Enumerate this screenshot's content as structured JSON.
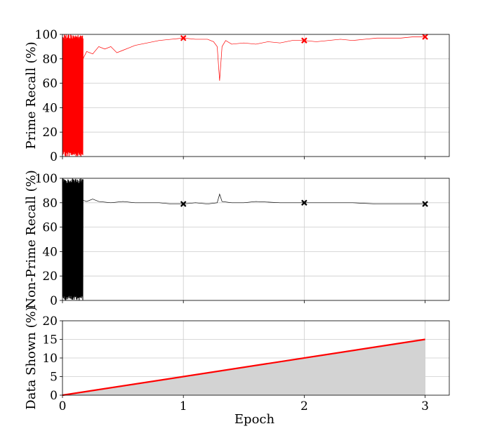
{
  "chart_data": [
    {
      "type": "line",
      "ylabel": "Prime Recall (%)",
      "xlabel": "",
      "ylim": [
        0,
        100
      ],
      "yticks": [
        0,
        20,
        40,
        60,
        80,
        100
      ],
      "xlim": [
        0,
        3.2
      ],
      "xticks": [
        0,
        1,
        2,
        3
      ],
      "grid": true,
      "line_color": "#ff0000",
      "marker_color": "#ff0000",
      "series": [
        {
          "x": [
            0.17,
            0.2,
            0.25,
            0.3,
            0.35,
            0.4,
            0.45,
            0.5,
            0.55,
            0.6,
            0.7,
            0.8,
            0.9,
            1.0,
            1.1,
            1.2,
            1.25,
            1.28,
            1.3,
            1.32,
            1.35,
            1.4,
            1.5,
            1.6,
            1.7,
            1.8,
            1.9,
            2.0,
            2.1,
            2.2,
            2.3,
            2.4,
            2.5,
            2.6,
            2.7,
            2.8,
            2.9,
            3.0
          ],
          "values": [
            80,
            86,
            84,
            90,
            88,
            90,
            85,
            87,
            89,
            91,
            93,
            95,
            96,
            97,
            96,
            96,
            94,
            90,
            62,
            90,
            95,
            92,
            93,
            92,
            94,
            93,
            95,
            95,
            94,
            95,
            96,
            95,
            96,
            97,
            97,
            97,
            98,
            98
          ]
        }
      ],
      "noisy_range": [
        0,
        0.17
      ],
      "markers": {
        "x": [
          1,
          2,
          3
        ],
        "values": [
          97,
          95,
          98
        ]
      }
    },
    {
      "type": "line",
      "ylabel": "Non-Prime Recall (%)",
      "xlabel": "",
      "ylim": [
        0,
        100
      ],
      "yticks": [
        0,
        20,
        40,
        60,
        80,
        100
      ],
      "xlim": [
        0,
        3.2
      ],
      "xticks": [
        0,
        1,
        2,
        3
      ],
      "grid": true,
      "line_color": "#000000",
      "marker_color": "#000000",
      "series": [
        {
          "x": [
            0.17,
            0.2,
            0.25,
            0.3,
            0.4,
            0.5,
            0.6,
            0.7,
            0.8,
            0.9,
            1.0,
            1.1,
            1.2,
            1.28,
            1.3,
            1.32,
            1.4,
            1.5,
            1.6,
            1.8,
            2.0,
            2.2,
            2.4,
            2.6,
            2.8,
            3.0
          ],
          "values": [
            82,
            81,
            83,
            81,
            80,
            81,
            80,
            80,
            80,
            79,
            79,
            80,
            79,
            80,
            87,
            81,
            80,
            80,
            81,
            80,
            80,
            80,
            80,
            79,
            79,
            79
          ]
        }
      ],
      "noisy_range": [
        0,
        0.17
      ],
      "markers": {
        "x": [
          1,
          2,
          3
        ],
        "values": [
          79,
          80,
          79
        ]
      }
    },
    {
      "type": "area",
      "ylabel": "Data Shown (%)",
      "xlabel": "Epoch",
      "ylim": [
        0,
        20
      ],
      "yticks": [
        0,
        5,
        10,
        15,
        20
      ],
      "xlim": [
        0,
        3.2
      ],
      "xticks": [
        0,
        1,
        2,
        3
      ],
      "grid": true,
      "line_color": "#ff0000",
      "fill_color": "#d3d3d3",
      "series": [
        {
          "x": [
            0,
            3
          ],
          "values": [
            0,
            15
          ]
        }
      ]
    }
  ]
}
